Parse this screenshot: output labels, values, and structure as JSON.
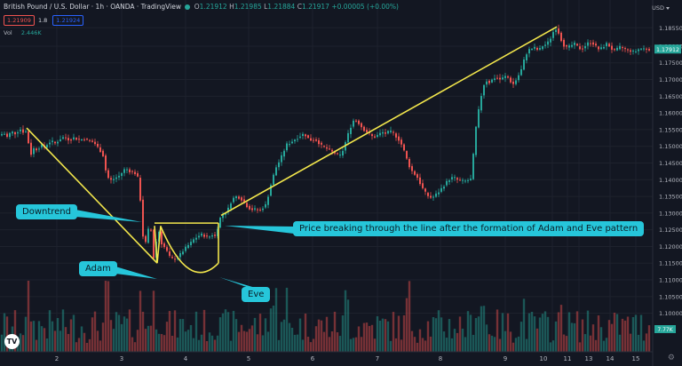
{
  "header": {
    "title": "British Pound / U.S. Dollar · 1h · OANDA · TradingView",
    "ohlc": [
      {
        "label": "O",
        "value": "1.21912"
      },
      {
        "label": "H",
        "value": "1.21985"
      },
      {
        "label": "L",
        "value": "1.21884"
      },
      {
        "label": "C",
        "value": "1.21917"
      }
    ],
    "change": "+0.00005 (+0.00%)",
    "bid": "1.21909",
    "spread": "1.8",
    "ask": "1.21924",
    "volume_label": "Vol",
    "volume_value": "2.446K",
    "currency": "USD"
  },
  "colors": {
    "background": "#131722",
    "up": "#26a69a",
    "down": "#ef5350",
    "trendline": "#f2e64c",
    "callout": "#26c6da",
    "text": "#b2b5be"
  },
  "annotations": {
    "downtrend": "Downtrend",
    "adam": "Adam",
    "eve": "Eve",
    "breakout": "Price breaking through the line after the formation of Adam and Eve pattern"
  },
  "chart_data": {
    "type": "candlestick",
    "x_ticks": [
      "2",
      "3",
      "4",
      "5",
      "6",
      "7",
      "8",
      "9",
      "10",
      "11",
      "13",
      "14",
      "15"
    ],
    "y_ticks": [
      "1.18550",
      "1.18000",
      "1.17500",
      "1.17000",
      "1.16500",
      "1.16000",
      "1.15500",
      "1.15000",
      "1.14500",
      "1.14000",
      "1.13500",
      "1.13000",
      "1.12500",
      "1.12000",
      "1.11500",
      "1.11000",
      "1.10500",
      "1.10000"
    ],
    "ylim": [
      1.0975,
      1.1885
    ],
    "current_price": "1.17912",
    "volume_scale_label": "7.77K",
    "price_path": [
      [
        0,
        1.1532
      ],
      [
        6,
        1.154
      ],
      [
        9,
        1.1526
      ],
      [
        14,
        1.1544
      ],
      [
        19,
        1.1538
      ],
      [
        24,
        1.1552
      ],
      [
        28,
        1.1542
      ],
      [
        30,
        1.155
      ],
      [
        33,
        1.1518
      ],
      [
        36,
        1.1474
      ],
      [
        40,
        1.1496
      ],
      [
        44,
        1.1488
      ],
      [
        47,
        1.1505
      ],
      [
        52,
        1.1496
      ],
      [
        56,
        1.1512
      ],
      [
        60,
        1.1514
      ],
      [
        64,
        1.1508
      ],
      [
        68,
        1.152
      ],
      [
        72,
        1.1527
      ],
      [
        76,
        1.1525
      ],
      [
        80,
        1.1518
      ],
      [
        84,
        1.1526
      ],
      [
        88,
        1.1522
      ],
      [
        92,
        1.1519
      ],
      [
        96,
        1.1523
      ],
      [
        100,
        1.1518
      ],
      [
        104,
        1.1516
      ],
      [
        108,
        1.1509
      ],
      [
        112,
        1.1495
      ],
      [
        115,
        1.1485
      ],
      [
        118,
        1.147
      ],
      [
        121,
        1.142
      ],
      [
        124,
        1.1402
      ],
      [
        127,
        1.1398
      ],
      [
        131,
        1.1405
      ],
      [
        135,
        1.141
      ],
      [
        138,
        1.1418
      ],
      [
        141,
        1.143
      ],
      [
        144,
        1.1432
      ],
      [
        147,
        1.1426
      ],
      [
        150,
        1.1424
      ],
      [
        153,
        1.142
      ],
      [
        156,
        1.1415
      ],
      [
        159,
        1.136
      ],
      [
        161,
        1.128
      ],
      [
        163,
        1.1215
      ],
      [
        165,
        1.1208
      ],
      [
        167,
        1.122
      ],
      [
        169,
        1.126
      ],
      [
        171,
        1.1254
      ],
      [
        173,
        1.1238
      ],
      [
        174,
        1.116
      ],
      [
        176,
        1.1185
      ],
      [
        178,
        1.1225
      ],
      [
        180,
        1.1252
      ],
      [
        182,
        1.1222
      ],
      [
        184,
        1.1205
      ],
      [
        186,
        1.12
      ],
      [
        189,
        1.1188
      ],
      [
        192,
        1.117
      ],
      [
        196,
        1.1162
      ],
      [
        200,
        1.1164
      ],
      [
        204,
        1.1175
      ],
      [
        208,
        1.1188
      ],
      [
        212,
        1.12
      ],
      [
        216,
        1.121
      ],
      [
        220,
        1.1222
      ],
      [
        224,
        1.123
      ],
      [
        228,
        1.1236
      ],
      [
        232,
        1.1232
      ],
      [
        236,
        1.1226
      ],
      [
        240,
        1.1236
      ],
      [
        244,
        1.123
      ],
      [
        247,
        1.1262
      ],
      [
        250,
        1.129
      ],
      [
        254,
        1.1298
      ],
      [
        258,
        1.131
      ],
      [
        262,
        1.1336
      ],
      [
        266,
        1.135
      ],
      [
        270,
        1.1348
      ],
      [
        274,
        1.134
      ],
      [
        278,
        1.1325
      ],
      [
        282,
        1.1315
      ],
      [
        286,
        1.131
      ],
      [
        290,
        1.1312
      ],
      [
        294,
        1.1308
      ],
      [
        298,
        1.1318
      ],
      [
        302,
        1.1328
      ],
      [
        304,
        1.136
      ],
      [
        308,
        1.14
      ],
      [
        312,
        1.1435
      ],
      [
        316,
        1.1455
      ],
      [
        320,
        1.1478
      ],
      [
        324,
        1.1505
      ],
      [
        328,
        1.151
      ],
      [
        332,
        1.1518
      ],
      [
        336,
        1.1525
      ],
      [
        340,
        1.1532
      ],
      [
        344,
        1.1538
      ],
      [
        348,
        1.1525
      ],
      [
        352,
        1.1518
      ],
      [
        356,
        1.1522
      ],
      [
        360,
        1.1512
      ],
      [
        364,
        1.15
      ],
      [
        368,
        1.1495
      ],
      [
        372,
        1.149
      ],
      [
        376,
        1.1482
      ],
      [
        380,
        1.1478
      ],
      [
        384,
        1.147
      ],
      [
        388,
        1.149
      ],
      [
        392,
        1.1525
      ],
      [
        396,
        1.1556
      ],
      [
        400,
        1.158
      ],
      [
        404,
        1.1575
      ],
      [
        408,
        1.156
      ],
      [
        412,
        1.1548
      ],
      [
        416,
        1.154
      ],
      [
        420,
        1.153
      ],
      [
        424,
        1.1528
      ],
      [
        428,
        1.1536
      ],
      [
        432,
        1.1542
      ],
      [
        436,
        1.1538
      ],
      [
        440,
        1.1545
      ],
      [
        444,
        1.154
      ],
      [
        448,
        1.1528
      ],
      [
        452,
        1.1515
      ],
      [
        456,
        1.149
      ],
      [
        460,
        1.1458
      ],
      [
        464,
        1.143
      ],
      [
        468,
        1.1418
      ],
      [
        472,
        1.1405
      ],
      [
        476,
        1.138
      ],
      [
        480,
        1.1362
      ],
      [
        484,
        1.135
      ],
      [
        488,
        1.1345
      ],
      [
        492,
        1.1355
      ],
      [
        496,
        1.1365
      ],
      [
        500,
        1.1378
      ],
      [
        504,
        1.1392
      ],
      [
        508,
        1.1402
      ],
      [
        512,
        1.1408
      ],
      [
        516,
        1.14
      ],
      [
        520,
        1.1397
      ],
      [
        524,
        1.1395
      ],
      [
        528,
        1.1398
      ],
      [
        532,
        1.1402
      ],
      [
        534,
        1.1455
      ],
      [
        536,
        1.153
      ],
      [
        540,
        1.16
      ],
      [
        544,
        1.166
      ],
      [
        548,
        1.17
      ],
      [
        552,
        1.169
      ],
      [
        556,
        1.17
      ],
      [
        560,
        1.1708
      ],
      [
        564,
        1.17
      ],
      [
        568,
        1.1705
      ],
      [
        572,
        1.1712
      ],
      [
        576,
        1.1695
      ],
      [
        580,
        1.1685
      ],
      [
        584,
        1.1706
      ],
      [
        588,
        1.1725
      ],
      [
        592,
        1.1762
      ],
      [
        596,
        1.1788
      ],
      [
        600,
        1.1792
      ],
      [
        604,
        1.1795
      ],
      [
        608,
        1.1786
      ],
      [
        612,
        1.18
      ],
      [
        616,
        1.1805
      ],
      [
        620,
        1.1815
      ],
      [
        624,
        1.184
      ],
      [
        627,
        1.1855
      ],
      [
        631,
        1.1838
      ],
      [
        634,
        1.1815
      ],
      [
        637,
        1.18
      ],
      [
        640,
        1.1795
      ],
      [
        644,
        1.18
      ],
      [
        648,
        1.1808
      ],
      [
        652,
        1.1798
      ],
      [
        656,
        1.179
      ],
      [
        660,
        1.18
      ],
      [
        664,
        1.181
      ],
      [
        668,
        1.1812
      ],
      [
        672,
        1.18
      ],
      [
        676,
        1.179
      ],
      [
        680,
        1.1795
      ],
      [
        684,
        1.1808
      ],
      [
        688,
        1.18
      ],
      [
        692,
        1.1786
      ],
      [
        696,
        1.179
      ],
      [
        700,
        1.1798
      ],
      [
        704,
        1.1792
      ],
      [
        708,
        1.1788
      ],
      [
        712,
        1.1786
      ],
      [
        716,
        1.1782
      ],
      [
        720,
        1.179
      ],
      [
        724,
        1.1793
      ],
      [
        728,
        1.1792
      ],
      [
        732,
        1.1791
      ]
    ],
    "trendlines": [
      {
        "name": "downtrend",
        "from": [
          30,
          1.1555
        ],
        "to": [
          177,
          1.115
        ]
      },
      {
        "name": "breakout",
        "from": [
          249,
          1.1293
        ],
        "to": [
          627,
          1.1858
        ]
      },
      {
        "name": "neckline",
        "from": [
          174,
          1.127
        ],
        "to": [
          246,
          1.127
        ]
      }
    ]
  }
}
